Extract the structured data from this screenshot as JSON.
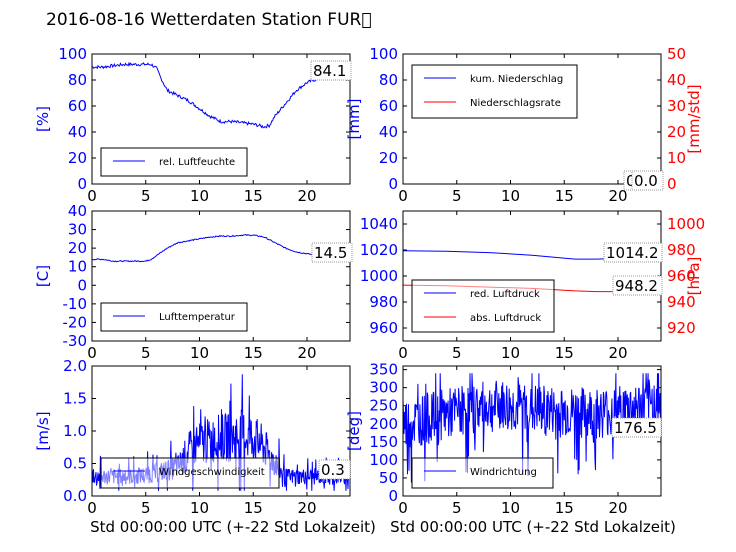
{
  "title": "2016-08-16 Wetterdaten Station FUR\u0000",
  "x_axis_label": "Std 00:00:00 UTC (+-22 Std Lokalzeit)",
  "colors": {
    "primary": "#0000ff",
    "secondary": "#ff0000"
  },
  "chart_data": [
    {
      "type": "line",
      "ylabel": "[%]",
      "xlim": [
        0,
        24
      ],
      "ylim": [
        0,
        100
      ],
      "xticks": [
        0,
        5,
        10,
        15,
        20
      ],
      "yticks": [
        0,
        20,
        40,
        60,
        80,
        100
      ],
      "value_label": "84.1",
      "legend": {
        "position": "lower-left",
        "entries": [
          "rel. Luftfeuchte"
        ]
      },
      "series": [
        {
          "name": "rel. Luftfeuchte",
          "color": "#0000ff",
          "axis": "left",
          "noise": 1.2,
          "x": [
            0,
            1,
            2,
            3,
            4,
            5,
            5.5,
            6,
            6.5,
            7,
            7.5,
            8,
            9,
            10,
            11,
            12,
            13,
            14,
            15,
            16,
            16.5,
            17,
            18,
            19,
            20,
            21,
            22,
            23,
            24
          ],
          "y": [
            90,
            90,
            91,
            92,
            92,
            92,
            92,
            89,
            80,
            72,
            70,
            68,
            64,
            58,
            52,
            48,
            48,
            47,
            46,
            44,
            45,
            52,
            62,
            72,
            78,
            81,
            84,
            86,
            84
          ]
        }
      ]
    },
    {
      "type": "line",
      "ylabel": "[mm]",
      "y2label": "[mm/std]",
      "xlim": [
        0,
        24
      ],
      "ylim": [
        0,
        100
      ],
      "y2lim": [
        0,
        50
      ],
      "xticks": [
        0,
        5,
        10,
        15,
        20
      ],
      "yticks": [
        0,
        20,
        40,
        60,
        80,
        100
      ],
      "y2ticks": [
        0,
        10,
        20,
        30,
        40,
        50
      ],
      "value_label": "0.0",
      "value_label2": "0.0",
      "legend": {
        "position": "upper-left",
        "entries": [
          "kum. Niederschlag",
          "Niederschlagsrate"
        ]
      },
      "series": [
        {
          "name": "kum. Niederschlag",
          "color": "#0000ff",
          "axis": "left",
          "noise": 0,
          "x": [
            0,
            24
          ],
          "y": [
            0,
            0
          ]
        },
        {
          "name": "Niederschlagsrate",
          "color": "#ff0000",
          "axis": "right",
          "noise": 0,
          "x": [
            0,
            24
          ],
          "y": [
            0,
            0
          ]
        }
      ]
    },
    {
      "type": "line",
      "ylabel": "[C]",
      "xlim": [
        0,
        24
      ],
      "ylim": [
        -30,
        40
      ],
      "xticks": [
        0,
        5,
        10,
        15,
        20
      ],
      "yticks": [
        -30,
        -20,
        -10,
        0,
        10,
        20,
        30,
        40
      ],
      "value_label": "14.5",
      "legend": {
        "position": "lower-left",
        "entries": [
          "Lufttemperatur"
        ]
      },
      "series": [
        {
          "name": "Lufttemperatur",
          "color": "#0000ff",
          "axis": "left",
          "noise": 0.3,
          "x": [
            0,
            1,
            2,
            3,
            4,
            5,
            5.5,
            6,
            7,
            8,
            9,
            10,
            11,
            12,
            13,
            14,
            15,
            16,
            17,
            18,
            19,
            20,
            21,
            22,
            23,
            24
          ],
          "y": [
            14,
            14,
            13,
            13,
            13,
            13,
            14,
            16,
            20,
            23,
            24,
            25,
            26,
            26.5,
            26.5,
            27,
            27,
            26,
            23,
            20,
            18,
            17,
            16,
            15,
            14.5,
            14.5
          ]
        }
      ]
    },
    {
      "type": "line",
      "ylabel": "",
      "y2label": "[hPa]",
      "xlim": [
        0,
        24
      ],
      "ylim": [
        950,
        1050
      ],
      "y2lim": [
        910,
        1010
      ],
      "xticks": [
        0,
        5,
        10,
        15,
        20
      ],
      "yticks": [
        960,
        980,
        1000,
        1020,
        1040
      ],
      "y2ticks": [
        920,
        940,
        960,
        980,
        1000
      ],
      "value_label": "1014.2",
      "value_label2": "948.2",
      "legend": {
        "position": "lower-left",
        "entries": [
          "red. Luftdruck",
          "abs. Luftdruck"
        ]
      },
      "series": [
        {
          "name": "red. Luftdruck",
          "color": "#0000ff",
          "axis": "left",
          "noise": 0,
          "x": [
            0,
            4,
            8,
            12,
            16,
            18,
            20,
            24
          ],
          "y": [
            1019.5,
            1019,
            1018,
            1016,
            1013,
            1013,
            1013.5,
            1014.2
          ]
        },
        {
          "name": "abs. Luftdruck",
          "color": "#ff0000",
          "axis": "right",
          "noise": 0,
          "x": [
            0,
            4,
            8,
            12,
            16,
            18,
            20,
            24
          ],
          "y": [
            953,
            952.5,
            951.5,
            950.5,
            948.5,
            948,
            948,
            948.2
          ]
        }
      ]
    },
    {
      "type": "line",
      "ylabel": "[m/s]",
      "xlim": [
        0,
        24
      ],
      "ylim": [
        0,
        2
      ],
      "xticks": [
        0,
        5,
        10,
        15,
        20
      ],
      "yticks": [
        0.0,
        0.5,
        1.0,
        1.5,
        2.0
      ],
      "value_label": "0.3",
      "legend": {
        "position": "lower-left",
        "entries": [
          "Windgeschwindigkeit"
        ]
      },
      "series": [
        {
          "name": "Windgeschwindigkeit",
          "color": "#0000ff",
          "axis": "left",
          "noise": 0.35,
          "spiky": true,
          "x": [
            0,
            2,
            4,
            6,
            8,
            9,
            10,
            11,
            12,
            13,
            14,
            15,
            16,
            17,
            18,
            20,
            22,
            24
          ],
          "y": [
            0.3,
            0.3,
            0.3,
            0.35,
            0.45,
            0.7,
            0.8,
            0.85,
            0.9,
            0.9,
            0.95,
            0.9,
            0.75,
            0.5,
            0.3,
            0.3,
            0.3,
            0.3
          ]
        }
      ]
    },
    {
      "type": "line",
      "ylabel": "[deg]",
      "xlim": [
        0,
        24
      ],
      "ylim": [
        0,
        360
      ],
      "xticks": [
        0,
        5,
        10,
        15,
        20
      ],
      "yticks": [
        0,
        50,
        100,
        150,
        200,
        250,
        300,
        350
      ],
      "value_label": "176.5",
      "legend": {
        "position": "lower-left",
        "entries": [
          "Windrichtung"
        ]
      },
      "series": [
        {
          "name": "Windrichtung",
          "color": "#0000ff",
          "axis": "left",
          "noise": 120,
          "spiky": true,
          "x": [
            0,
            3,
            6,
            9,
            12,
            15,
            18,
            21,
            24
          ],
          "y": [
            200,
            220,
            240,
            250,
            240,
            230,
            230,
            240,
            260
          ]
        }
      ]
    }
  ]
}
